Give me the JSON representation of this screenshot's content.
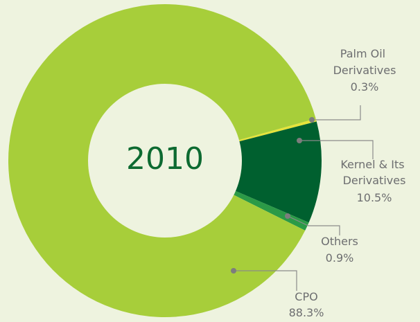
{
  "chart_data": {
    "type": "donut",
    "center_label": "2010",
    "categories": [
      "Palm Oil Derivatives",
      "Kernel & Its Derivatives",
      "Others",
      "CPO"
    ],
    "values": [
      0.3,
      10.5,
      0.9,
      88.3
    ],
    "value_labels": [
      "0.3%",
      "10.5%",
      "0.9%",
      "88.3%"
    ],
    "colors": [
      "#e6e33a",
      "#00602f",
      "#2b9a47",
      "#a7ce3a"
    ]
  }
}
